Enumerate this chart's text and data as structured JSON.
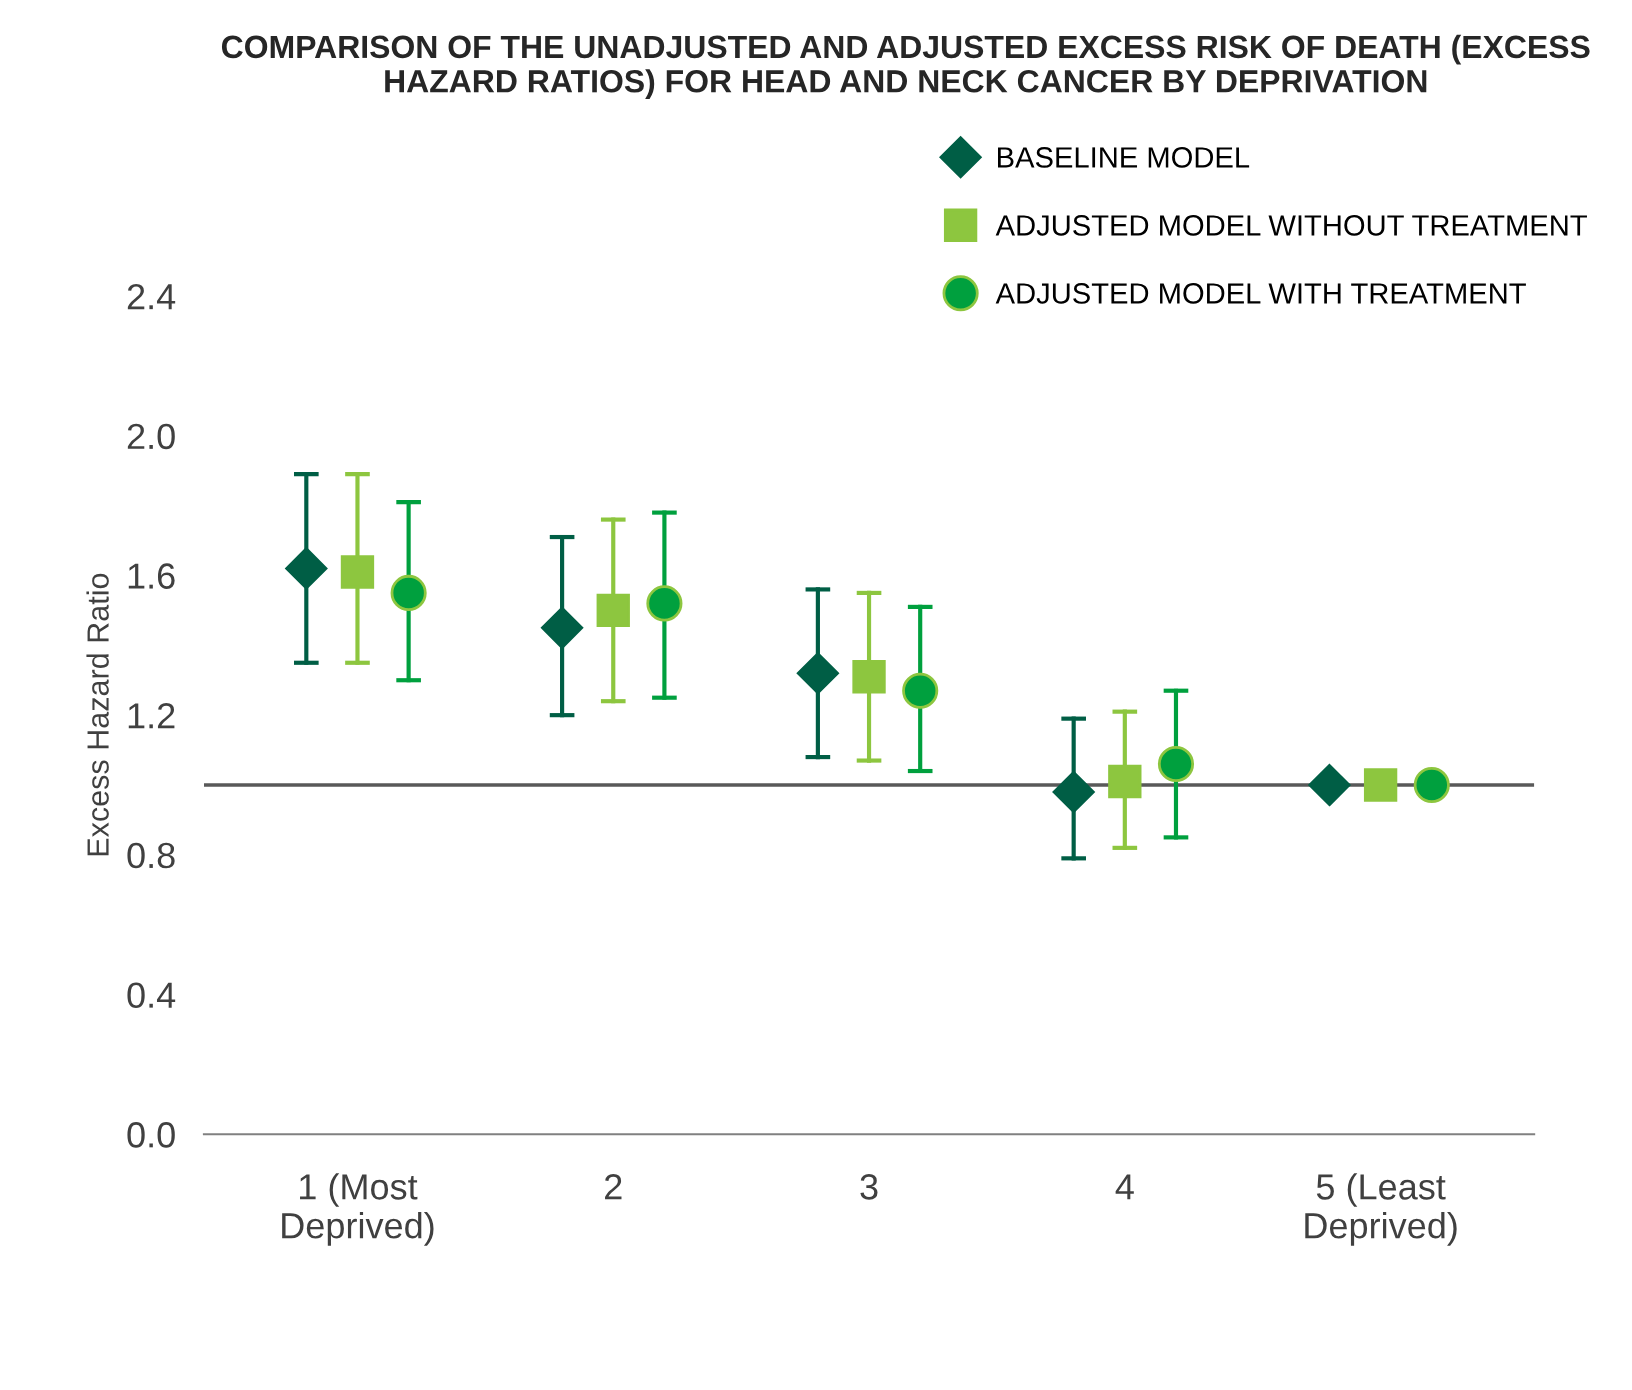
{
  "chart_data": {
    "type": "scatter",
    "title": "COMPARISON OF THE UNADJUSTED AND ADJUSTED EXCESS RISK OF DEATH (EXCESS HAZARD RATIOS) FOR HEAD AND NECK CANCER BY DEPRIVATION",
    "ylabel": "Excess Hazard Ratio",
    "categories": [
      "1 (Most\nDeprived)",
      "2",
      "3",
      "4",
      "5 (Least\nDeprived)"
    ],
    "series": [
      {
        "name": "BASELINE MODEL",
        "color": "#005e45",
        "marker": "diamond",
        "values": [
          1.62,
          1.45,
          1.32,
          0.98,
          1.0
        ],
        "errors": [
          [
            1.35,
            1.89
          ],
          [
            1.2,
            1.71
          ],
          [
            1.08,
            1.56
          ],
          [
            0.79,
            1.19
          ],
          null
        ]
      },
      {
        "name": "ADJUSTED MODEL WITHOUT TREATMENT",
        "color": "#8dc63f",
        "marker": "square",
        "values": [
          1.61,
          1.5,
          1.31,
          1.01,
          1.0
        ],
        "errors": [
          [
            1.35,
            1.89
          ],
          [
            1.24,
            1.76
          ],
          [
            1.07,
            1.55
          ],
          [
            0.82,
            1.21
          ],
          null
        ]
      },
      {
        "name": "ADJUSTED MODEL WITH TREATMENT",
        "color": "#00a03e",
        "marker": "circle",
        "values": [
          1.55,
          1.52,
          1.27,
          1.06,
          1.0
        ],
        "errors": [
          [
            1.3,
            1.81
          ],
          [
            1.25,
            1.78
          ],
          [
            1.04,
            1.51
          ],
          [
            0.85,
            1.27
          ],
          null
        ]
      }
    ],
    "ylim": [
      0,
      2.4
    ],
    "yticks": [
      {
        "value": 0,
        "label": "0.0"
      },
      0.4,
      0.8,
      1.2,
      1.6,
      {
        "value": 2,
        "label": "2.0"
      },
      2.4
    ],
    "ref_lines": [
      {
        "axis": "y",
        "value": 1.0,
        "color": "#595959"
      }
    ],
    "grid": false,
    "legend": "top right"
  }
}
